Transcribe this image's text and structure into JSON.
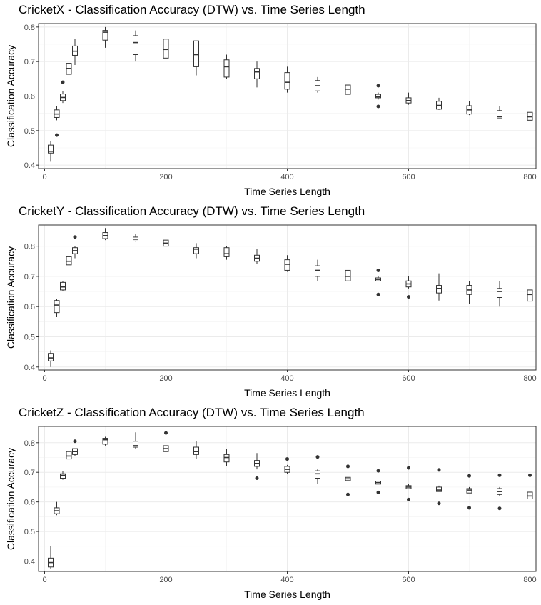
{
  "chart_data": [
    {
      "type": "box",
      "title": "CricketX - Classification Accuracy (DTW) vs. Time Series Length",
      "xlabel": "Time Series Length",
      "ylabel": "Classification Accuracy",
      "xlim": [
        -10,
        810
      ],
      "ylim": [
        0.39,
        0.81
      ],
      "xticks": [
        0,
        200,
        400,
        600,
        800
      ],
      "yticks": [
        0.4,
        0.5,
        0.6,
        0.7,
        0.8
      ],
      "grid": true,
      "boxes": [
        {
          "x": 10,
          "lo": 0.41,
          "q1": 0.435,
          "med": 0.44,
          "q3": 0.458,
          "hi": 0.47,
          "outliers": []
        },
        {
          "x": 20,
          "lo": 0.53,
          "q1": 0.538,
          "med": 0.548,
          "q3": 0.56,
          "hi": 0.57,
          "outliers": [
            0.487
          ]
        },
        {
          "x": 30,
          "lo": 0.58,
          "q1": 0.587,
          "med": 0.596,
          "q3": 0.606,
          "hi": 0.615,
          "outliers": [
            0.64
          ]
        },
        {
          "x": 40,
          "lo": 0.65,
          "q1": 0.663,
          "med": 0.68,
          "q3": 0.695,
          "hi": 0.71,
          "outliers": []
        },
        {
          "x": 50,
          "lo": 0.69,
          "q1": 0.718,
          "med": 0.73,
          "q3": 0.745,
          "hi": 0.765,
          "outliers": []
        },
        {
          "x": 100,
          "lo": 0.74,
          "q1": 0.762,
          "med": 0.785,
          "q3": 0.79,
          "hi": 0.8,
          "outliers": []
        },
        {
          "x": 150,
          "lo": 0.7,
          "q1": 0.72,
          "med": 0.755,
          "q3": 0.775,
          "hi": 0.79,
          "outliers": []
        },
        {
          "x": 200,
          "lo": 0.685,
          "q1": 0.71,
          "med": 0.735,
          "q3": 0.765,
          "hi": 0.79,
          "outliers": []
        },
        {
          "x": 250,
          "lo": 0.66,
          "q1": 0.685,
          "med": 0.72,
          "q3": 0.76,
          "hi": 0.76,
          "outliers": []
        },
        {
          "x": 300,
          "lo": 0.65,
          "q1": 0.655,
          "med": 0.685,
          "q3": 0.705,
          "hi": 0.72,
          "outliers": []
        },
        {
          "x": 350,
          "lo": 0.625,
          "q1": 0.65,
          "med": 0.67,
          "q3": 0.68,
          "hi": 0.7,
          "outliers": []
        },
        {
          "x": 400,
          "lo": 0.61,
          "q1": 0.62,
          "med": 0.64,
          "q3": 0.668,
          "hi": 0.685,
          "outliers": []
        },
        {
          "x": 450,
          "lo": 0.61,
          "q1": 0.615,
          "med": 0.63,
          "q3": 0.645,
          "hi": 0.655,
          "outliers": []
        },
        {
          "x": 500,
          "lo": 0.595,
          "q1": 0.605,
          "med": 0.62,
          "q3": 0.632,
          "hi": 0.635,
          "outliers": []
        },
        {
          "x": 550,
          "lo": 0.59,
          "q1": 0.595,
          "med": 0.598,
          "q3": 0.605,
          "hi": 0.61,
          "outliers": [
            0.63,
            0.57
          ]
        },
        {
          "x": 600,
          "lo": 0.575,
          "q1": 0.58,
          "med": 0.587,
          "q3": 0.595,
          "hi": 0.61,
          "outliers": []
        },
        {
          "x": 650,
          "lo": 0.56,
          "q1": 0.562,
          "med": 0.573,
          "q3": 0.585,
          "hi": 0.595,
          "outliers": []
        },
        {
          "x": 700,
          "lo": 0.545,
          "q1": 0.548,
          "med": 0.56,
          "q3": 0.572,
          "hi": 0.585,
          "outliers": []
        },
        {
          "x": 750,
          "lo": 0.533,
          "q1": 0.535,
          "med": 0.54,
          "q3": 0.558,
          "hi": 0.57,
          "outliers": []
        },
        {
          "x": 800,
          "lo": 0.525,
          "q1": 0.53,
          "med": 0.54,
          "q3": 0.553,
          "hi": 0.565,
          "outliers": []
        }
      ]
    },
    {
      "type": "box",
      "title": "CricketY - Classification Accuracy (DTW) vs. Time Series Length",
      "xlabel": "Time Series Length",
      "ylabel": "Classification Accuracy",
      "xlim": [
        -10,
        810
      ],
      "ylim": [
        0.39,
        0.87
      ],
      "xticks": [
        0,
        200,
        400,
        600,
        800
      ],
      "yticks": [
        0.4,
        0.5,
        0.6,
        0.7,
        0.8
      ],
      "grid": true,
      "boxes": [
        {
          "x": 10,
          "lo": 0.4,
          "q1": 0.42,
          "med": 0.43,
          "q3": 0.445,
          "hi": 0.455,
          "outliers": []
        },
        {
          "x": 20,
          "lo": 0.565,
          "q1": 0.58,
          "med": 0.605,
          "q3": 0.62,
          "hi": 0.625,
          "outliers": []
        },
        {
          "x": 30,
          "lo": 0.65,
          "q1": 0.655,
          "med": 0.665,
          "q3": 0.68,
          "hi": 0.685,
          "outliers": []
        },
        {
          "x": 40,
          "lo": 0.73,
          "q1": 0.738,
          "med": 0.75,
          "q3": 0.765,
          "hi": 0.775,
          "outliers": []
        },
        {
          "x": 50,
          "lo": 0.76,
          "q1": 0.775,
          "med": 0.785,
          "q3": 0.795,
          "hi": 0.8,
          "outliers": [
            0.83
          ]
        },
        {
          "x": 100,
          "lo": 0.82,
          "q1": 0.825,
          "med": 0.835,
          "q3": 0.845,
          "hi": 0.86,
          "outliers": []
        },
        {
          "x": 150,
          "lo": 0.815,
          "q1": 0.817,
          "med": 0.823,
          "q3": 0.83,
          "hi": 0.84,
          "outliers": []
        },
        {
          "x": 200,
          "lo": 0.785,
          "q1": 0.8,
          "med": 0.81,
          "q3": 0.82,
          "hi": 0.825,
          "outliers": []
        },
        {
          "x": 250,
          "lo": 0.76,
          "q1": 0.775,
          "med": 0.79,
          "q3": 0.795,
          "hi": 0.81,
          "outliers": []
        },
        {
          "x": 300,
          "lo": 0.755,
          "q1": 0.765,
          "med": 0.775,
          "q3": 0.795,
          "hi": 0.8,
          "outliers": []
        },
        {
          "x": 350,
          "lo": 0.74,
          "q1": 0.75,
          "med": 0.76,
          "q3": 0.77,
          "hi": 0.79,
          "outliers": []
        },
        {
          "x": 400,
          "lo": 0.715,
          "q1": 0.72,
          "med": 0.74,
          "q3": 0.755,
          "hi": 0.77,
          "outliers": []
        },
        {
          "x": 450,
          "lo": 0.685,
          "q1": 0.7,
          "med": 0.72,
          "q3": 0.735,
          "hi": 0.755,
          "outliers": []
        },
        {
          "x": 500,
          "lo": 0.67,
          "q1": 0.685,
          "med": 0.7,
          "q3": 0.72,
          "hi": 0.725,
          "outliers": []
        },
        {
          "x": 550,
          "lo": 0.685,
          "q1": 0.685,
          "med": 0.69,
          "q3": 0.695,
          "hi": 0.7,
          "outliers": [
            0.72,
            0.64
          ]
        },
        {
          "x": 600,
          "lo": 0.66,
          "q1": 0.665,
          "med": 0.675,
          "q3": 0.685,
          "hi": 0.7,
          "outliers": [
            0.632
          ]
        },
        {
          "x": 650,
          "lo": 0.62,
          "q1": 0.645,
          "med": 0.66,
          "q3": 0.67,
          "hi": 0.71,
          "outliers": []
        },
        {
          "x": 700,
          "lo": 0.61,
          "q1": 0.64,
          "med": 0.655,
          "q3": 0.67,
          "hi": 0.685,
          "outliers": []
        },
        {
          "x": 750,
          "lo": 0.6,
          "q1": 0.63,
          "med": 0.65,
          "q3": 0.66,
          "hi": 0.685,
          "outliers": []
        },
        {
          "x": 800,
          "lo": 0.59,
          "q1": 0.618,
          "med": 0.64,
          "q3": 0.655,
          "hi": 0.675,
          "outliers": []
        }
      ]
    },
    {
      "type": "box",
      "title": "CricketZ - Classification Accuracy (DTW) vs. Time Series Length",
      "xlabel": "Time Series Length",
      "ylabel": "Classification Accuracy",
      "xlim": [
        -10,
        810
      ],
      "ylim": [
        0.365,
        0.855
      ],
      "xticks": [
        0,
        200,
        400,
        600,
        800
      ],
      "yticks": [
        0.4,
        0.5,
        0.6,
        0.7,
        0.8
      ],
      "grid": true,
      "boxes": [
        {
          "x": 10,
          "lo": 0.375,
          "q1": 0.38,
          "med": 0.395,
          "q3": 0.41,
          "hi": 0.45,
          "outliers": []
        },
        {
          "x": 20,
          "lo": 0.555,
          "q1": 0.56,
          "med": 0.57,
          "q3": 0.58,
          "hi": 0.6,
          "outliers": []
        },
        {
          "x": 30,
          "lo": 0.675,
          "q1": 0.68,
          "med": 0.69,
          "q3": 0.695,
          "hi": 0.705,
          "outliers": []
        },
        {
          "x": 40,
          "lo": 0.74,
          "q1": 0.745,
          "med": 0.755,
          "q3": 0.77,
          "hi": 0.78,
          "outliers": []
        },
        {
          "x": 50,
          "lo": 0.755,
          "q1": 0.76,
          "med": 0.77,
          "q3": 0.78,
          "hi": 0.78,
          "outliers": [
            0.805
          ]
        },
        {
          "x": 100,
          "lo": 0.79,
          "q1": 0.795,
          "med": 0.81,
          "q3": 0.815,
          "hi": 0.82,
          "outliers": []
        },
        {
          "x": 150,
          "lo": 0.78,
          "q1": 0.785,
          "med": 0.79,
          "q3": 0.805,
          "hi": 0.835,
          "outliers": []
        },
        {
          "x": 200,
          "lo": 0.77,
          "q1": 0.77,
          "med": 0.78,
          "q3": 0.79,
          "hi": 0.795,
          "outliers": [
            0.833
          ]
        },
        {
          "x": 250,
          "lo": 0.745,
          "q1": 0.76,
          "med": 0.77,
          "q3": 0.785,
          "hi": 0.805,
          "outliers": []
        },
        {
          "x": 300,
          "lo": 0.72,
          "q1": 0.735,
          "med": 0.75,
          "q3": 0.76,
          "hi": 0.78,
          "outliers": []
        },
        {
          "x": 350,
          "lo": 0.71,
          "q1": 0.72,
          "med": 0.73,
          "q3": 0.74,
          "hi": 0.765,
          "outliers": [
            0.68
          ]
        },
        {
          "x": 400,
          "lo": 0.695,
          "q1": 0.7,
          "med": 0.71,
          "q3": 0.72,
          "hi": 0.725,
          "outliers": [
            0.745
          ]
        },
        {
          "x": 450,
          "lo": 0.66,
          "q1": 0.68,
          "med": 0.695,
          "q3": 0.705,
          "hi": 0.71,
          "outliers": [
            0.752
          ]
        },
        {
          "x": 500,
          "lo": 0.67,
          "q1": 0.672,
          "med": 0.678,
          "q3": 0.683,
          "hi": 0.688,
          "outliers": [
            0.72,
            0.625
          ]
        },
        {
          "x": 550,
          "lo": 0.66,
          "q1": 0.66,
          "med": 0.665,
          "q3": 0.67,
          "hi": 0.67,
          "outliers": [
            0.705,
            0.632
          ]
        },
        {
          "x": 600,
          "lo": 0.645,
          "q1": 0.645,
          "med": 0.65,
          "q3": 0.655,
          "hi": 0.66,
          "outliers": [
            0.715,
            0.608
          ]
        },
        {
          "x": 650,
          "lo": 0.635,
          "q1": 0.635,
          "med": 0.64,
          "q3": 0.65,
          "hi": 0.655,
          "outliers": [
            0.708,
            0.595
          ]
        },
        {
          "x": 700,
          "lo": 0.63,
          "q1": 0.63,
          "med": 0.64,
          "q3": 0.645,
          "hi": 0.65,
          "outliers": [
            0.688,
            0.58
          ]
        },
        {
          "x": 750,
          "lo": 0.62,
          "q1": 0.625,
          "med": 0.635,
          "q3": 0.645,
          "hi": 0.65,
          "outliers": [
            0.69,
            0.578
          ]
        },
        {
          "x": 800,
          "lo": 0.585,
          "q1": 0.61,
          "med": 0.62,
          "q3": 0.633,
          "hi": 0.64,
          "outliers": [
            0.69
          ]
        }
      ]
    }
  ]
}
